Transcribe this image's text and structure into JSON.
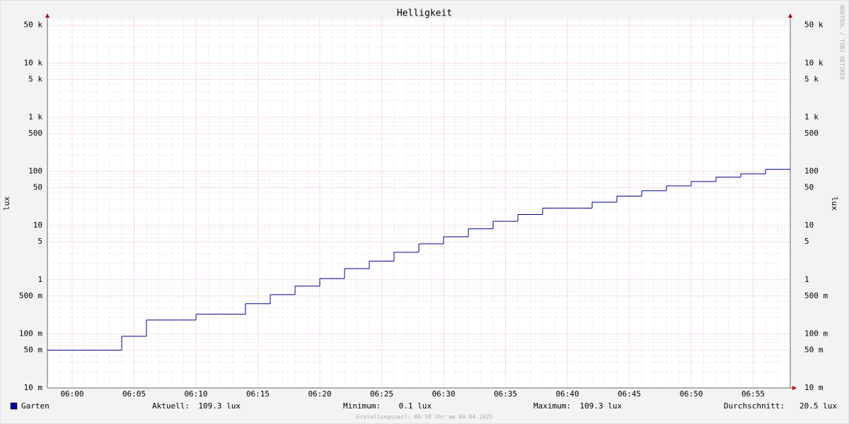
{
  "chart_data": {
    "type": "step",
    "title": "Helligkeit",
    "y_label": "lux",
    "log_scale": true,
    "grid": true,
    "xlim": [
      "05:58",
      "06:58"
    ],
    "xticks": [
      "06:00",
      "06:05",
      "06:10",
      "06:15",
      "06:20",
      "06:25",
      "06:30",
      "06:35",
      "06:40",
      "06:45",
      "06:50",
      "06:55"
    ],
    "ylim": [
      0.01,
      65000
    ],
    "yticks": [
      {
        "value": 0.01,
        "label": "10 m"
      },
      {
        "value": 0.05,
        "label": "50 m"
      },
      {
        "value": 0.1,
        "label": "100 m"
      },
      {
        "value": 0.5,
        "label": "500 m"
      },
      1,
      5,
      10,
      50,
      100,
      500,
      {
        "value": 1000,
        "label": "1 k"
      },
      {
        "value": 5000,
        "label": "5 k"
      },
      {
        "value": 10000,
        "label": "10 k"
      },
      {
        "value": 50000,
        "label": "50 k"
      }
    ],
    "x": [
      "05:58",
      "06:04",
      "06:06",
      "06:10",
      "06:14",
      "06:16",
      "06:18",
      "06:20",
      "06:22",
      "06:24",
      "06:26",
      "06:28",
      "06:30",
      "06:32",
      "06:34",
      "06:36",
      "06:38",
      "06:42",
      "06:44",
      "06:46",
      "06:48",
      "06:50",
      "06:52",
      "06:54",
      "06:56"
    ],
    "series": [
      {
        "name": "Garten",
        "color": "#00008b",
        "values": [
          0.05,
          0.09,
          0.18,
          0.23,
          0.36,
          0.53,
          0.76,
          1.05,
          1.6,
          2.2,
          3.2,
          4.6,
          6.2,
          8.7,
          12,
          16,
          21,
          27,
          35,
          44,
          54,
          65,
          78,
          90,
          109.3
        ]
      }
    ]
  },
  "legend": {
    "stats": [
      {
        "label": "Aktuell:",
        "value": "109.3 lux"
      },
      {
        "label": "Minimum:",
        "value": "0.1 lux"
      },
      {
        "label": "Maximum:",
        "value": "109.3 lux"
      },
      {
        "label": "Durchschnitt:",
        "value": "20.5 lux"
      }
    ]
  },
  "footer": "Erstellungszeit: 06:58 Uhr am 09.04.2025",
  "watermark": "RRDTOOL / TOBI OETIKER"
}
